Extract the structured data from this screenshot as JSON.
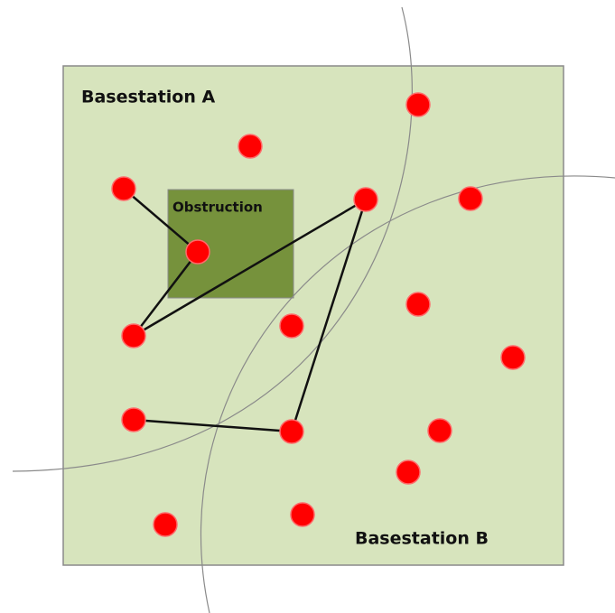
{
  "labels": {
    "basestation_a": "Basestation A",
    "basestation_b": "Basestation B",
    "obstruction": "Obstruction"
  }
}
